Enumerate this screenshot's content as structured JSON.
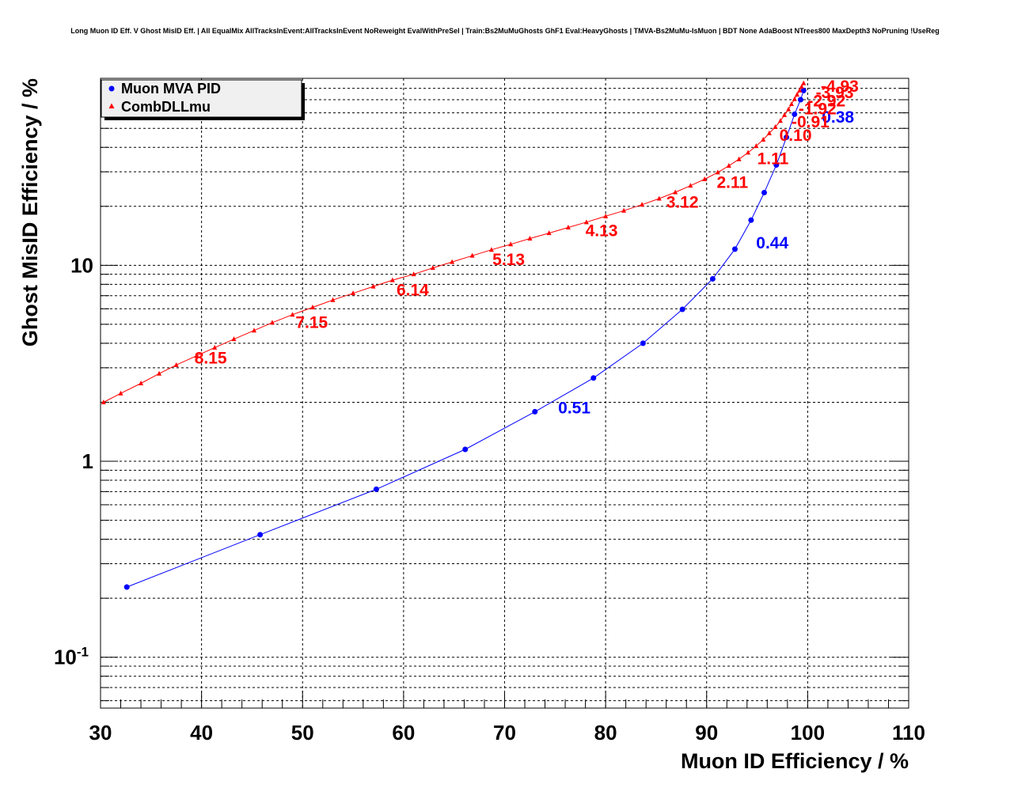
{
  "chart_data": {
    "type": "line",
    "title": "Long Muon ID Eff. V Ghost MisID Eff. | All EqualMix AllTracksInEvent:AllTracksInEvent NoReweight EvalWithPreSel | Train:Bs2MuMuGhosts GhF1 Eval:HeavyGhosts | TMVA-Bs2MuMu-IsMuon | BDT None AdaBoost NTrees800 MaxDepth3 NoPruning !UseReg",
    "xlabel": "Muon ID Efficiency / %",
    "ylabel": "Ghost MisID Efficiency / %",
    "xlim": [
      30,
      110
    ],
    "ylim": [
      0.055,
      90
    ],
    "yscale": "log",
    "grid": true,
    "legend_position": "top-left",
    "x_ticks": [
      "30",
      "40",
      "50",
      "60",
      "70",
      "80",
      "90",
      "100",
      "110"
    ],
    "y_ticks": [
      {
        "value": 0.1,
        "base": "10",
        "exp": "-1"
      },
      {
        "value": 1,
        "base": "1",
        "exp": ""
      },
      {
        "value": 10,
        "base": "10",
        "exp": ""
      }
    ],
    "series": [
      {
        "name": "Muon MVA PID",
        "color": "#0000ff",
        "marker": "circle",
        "x": [
          32.6,
          45.8,
          57.3,
          66.1,
          73.0,
          78.8,
          83.7,
          87.6,
          90.6,
          92.8,
          94.4,
          95.7,
          96.9,
          97.9,
          98.7,
          99.3,
          99.6
        ],
        "y": [
          0.228,
          0.422,
          0.72,
          1.15,
          1.79,
          2.66,
          4.0,
          5.96,
          8.53,
          12.1,
          17.0,
          23.5,
          32.5,
          45.0,
          59.0,
          70.0,
          78.0
        ],
        "labels": [
          {
            "x": 75.3,
            "y": 1.87,
            "text": "0.51"
          },
          {
            "x": 94.9,
            "y": 13.0,
            "text": "0.44"
          },
          {
            "x": 101.4,
            "y": 57.0,
            "text": "0.38"
          }
        ]
      },
      {
        "name": "CombDLLmu",
        "color": "#ff0000",
        "marker": "triangle",
        "x": [
          30.3,
          32.0,
          34.0,
          35.8,
          37.5,
          39.5,
          41.3,
          43.2,
          45.2,
          47.0,
          49.0,
          51.0,
          53.0,
          55.0,
          57.0,
          58.9,
          61.0,
          62.9,
          64.8,
          66.8,
          68.7,
          70.6,
          72.5,
          74.4,
          76.3,
          78.1,
          80.0,
          81.8,
          83.6,
          85.3,
          86.9,
          88.4,
          89.8,
          91.1,
          92.2,
          93.2,
          94.1,
          94.9,
          95.6,
          96.2,
          96.8,
          97.3,
          97.7,
          98.1,
          98.4,
          98.7,
          98.95,
          99.2,
          99.4,
          99.6
        ],
        "y": [
          2.0,
          2.22,
          2.5,
          2.8,
          3.1,
          3.45,
          3.8,
          4.2,
          4.65,
          5.1,
          5.6,
          6.1,
          6.65,
          7.2,
          7.8,
          8.4,
          9.0,
          9.7,
          10.4,
          11.2,
          12.0,
          12.8,
          13.7,
          14.6,
          15.6,
          16.6,
          17.8,
          19.0,
          20.4,
          21.9,
          23.6,
          25.5,
          27.5,
          29.8,
          32.2,
          34.8,
          37.6,
          40.6,
          43.8,
          47.2,
          50.8,
          54.6,
          58.5,
          62.5,
          66.5,
          70.5,
          74.3,
          78.0,
          81.5,
          85.0
        ],
        "labels": [
          {
            "x": 39.3,
            "y": 3.37,
            "text": "8.15"
          },
          {
            "x": 49.3,
            "y": 5.12,
            "text": "7.15"
          },
          {
            "x": 59.3,
            "y": 7.5,
            "text": "6.14"
          },
          {
            "x": 68.8,
            "y": 10.7,
            "text": "5.13"
          },
          {
            "x": 78.0,
            "y": 15.0,
            "text": "4.13"
          },
          {
            "x": 86.0,
            "y": 21.0,
            "text": "3.12"
          },
          {
            "x": 91.0,
            "y": 26.5,
            "text": "2.11"
          },
          {
            "x": 95.0,
            "y": 35.0,
            "text": "1.11"
          },
          {
            "x": 97.2,
            "y": 46.0,
            "text": "0.10"
          },
          {
            "x": 98.4,
            "y": 54.0,
            "text": "-0.91"
          },
          {
            "x": 99.1,
            "y": 63.0,
            "text": "-1.92"
          },
          {
            "x": 100.0,
            "y": 69.0,
            "text": "-2.92"
          },
          {
            "x": 100.8,
            "y": 76.0,
            "text": "-3.93"
          },
          {
            "x": 101.3,
            "y": 82.0,
            "text": "-4.93"
          }
        ]
      }
    ]
  }
}
